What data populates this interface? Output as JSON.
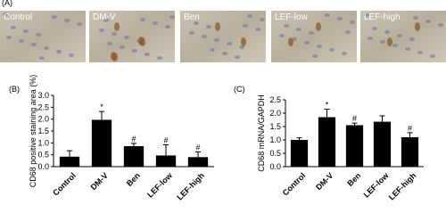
{
  "panel_a": {
    "label": "(A)",
    "images": [
      "Control",
      "DM-V",
      "Ben",
      "LEF-low",
      "LEF-high"
    ]
  },
  "chart_data": [
    {
      "type": "bar",
      "panel_label": "(B)",
      "y_label": "CD68 positive staining area (%)",
      "categories": [
        "Control",
        "DM-V",
        "Ben",
        "LEF-low",
        "LEF-high"
      ],
      "values": [
        0.42,
        1.97,
        0.86,
        0.47,
        0.4
      ],
      "errors": [
        0.25,
        0.35,
        0.12,
        0.45,
        0.22
      ],
      "annotations": [
        null,
        "*",
        "#",
        "#",
        "#"
      ],
      "color": "#000000",
      "ylim": [
        0,
        3
      ],
      "yticks": [
        {
          "value": 0,
          "label": "0.0"
        },
        0.5,
        {
          "value": 1,
          "label": "1.0"
        },
        1.5,
        {
          "value": 2,
          "label": "2.0"
        },
        2.5,
        {
          "value": 3,
          "label": "3.0"
        }
      ]
    },
    {
      "type": "bar",
      "panel_label": "(C)",
      "y_label": "CD68 mRNA/GAPDH",
      "categories": [
        "Control",
        "DM-V",
        "Ben",
        "LEF-low",
        "LEF-high"
      ],
      "values": [
        1.0,
        1.85,
        1.55,
        1.68,
        1.1
      ],
      "errors": [
        0.08,
        0.3,
        0.08,
        0.22,
        0.17
      ],
      "annotations": [
        null,
        "*",
        "#",
        null,
        "#"
      ],
      "color": "#000000",
      "ylim": [
        0,
        2.5
      ],
      "yticks": [
        {
          "value": 0,
          "label": "0.0"
        },
        0.5,
        {
          "value": 1,
          "label": "1.0"
        },
        1.5,
        {
          "value": 2,
          "label": "2.0"
        },
        2.5
      ]
    }
  ]
}
